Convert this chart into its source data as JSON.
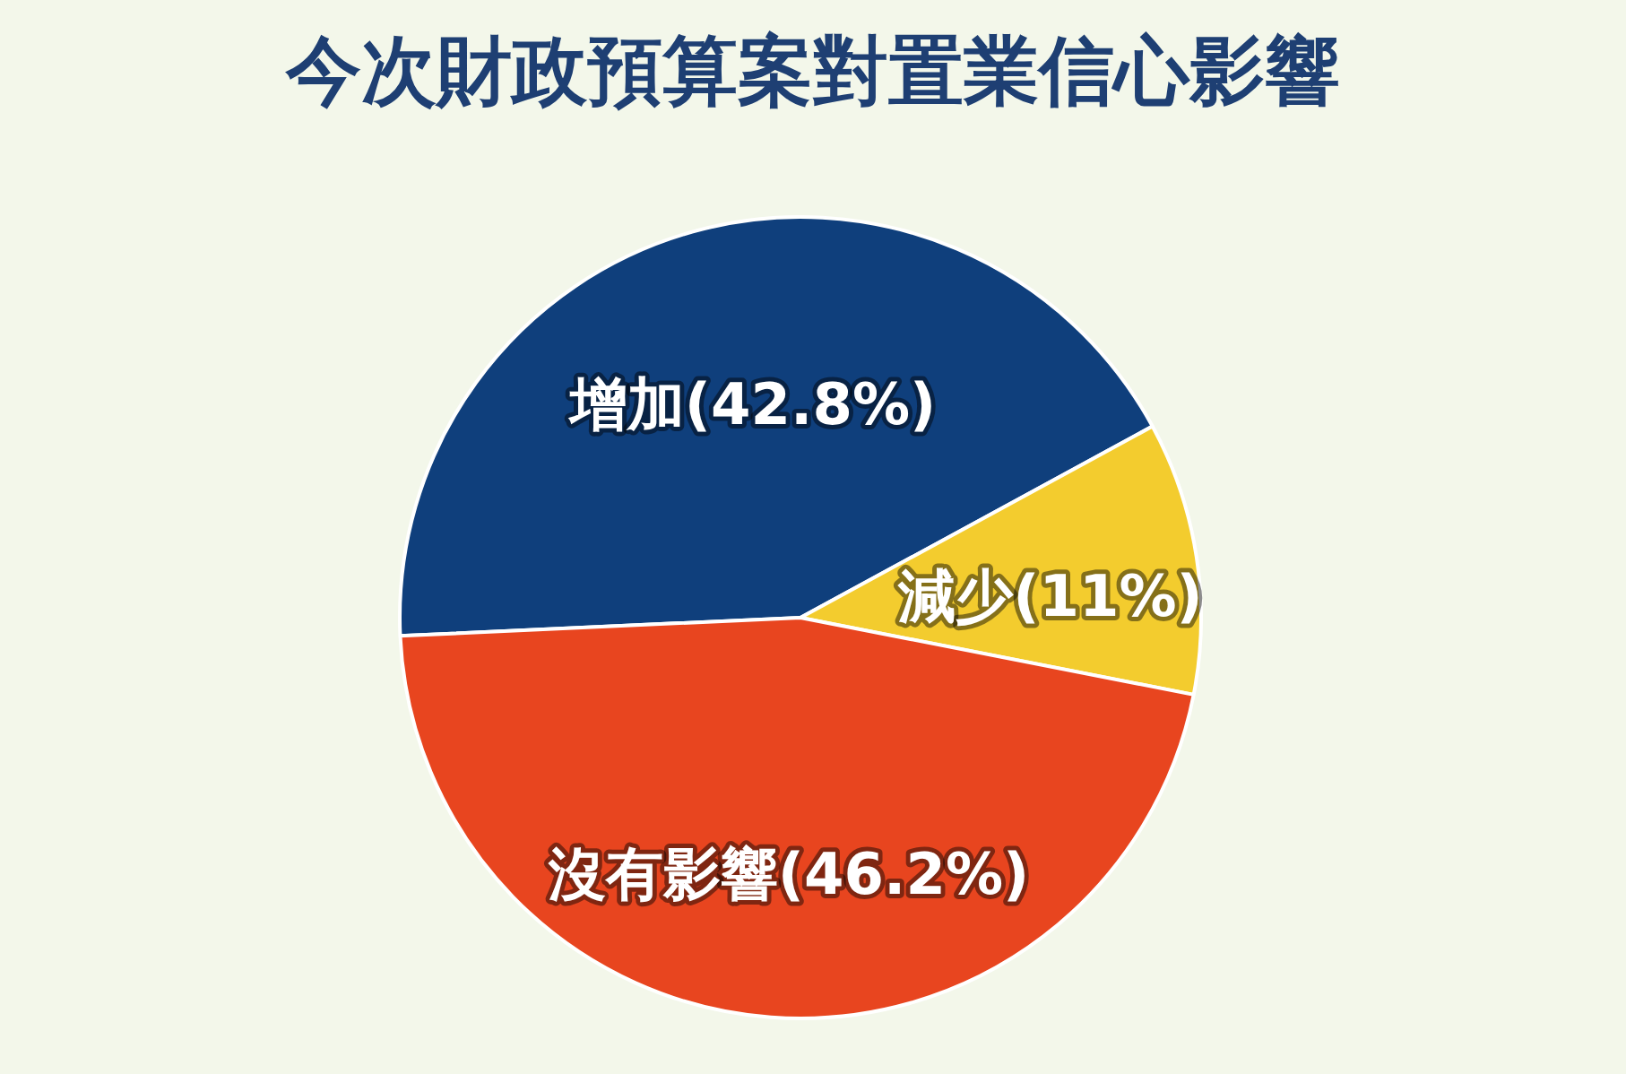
{
  "chart_data": {
    "type": "pie",
    "title": "今次財政預算案對置業信心影響",
    "categories": [
      "增加",
      "減少",
      "沒有影響"
    ],
    "values": [
      42.8,
      11,
      46.2
    ],
    "colors": [
      "#0f3f7c",
      "#f3cc2e",
      "#e8451f"
    ],
    "value_labels": [
      "(42.8%)",
      "(11%)",
      "(46.2%)"
    ],
    "legend": false
  }
}
